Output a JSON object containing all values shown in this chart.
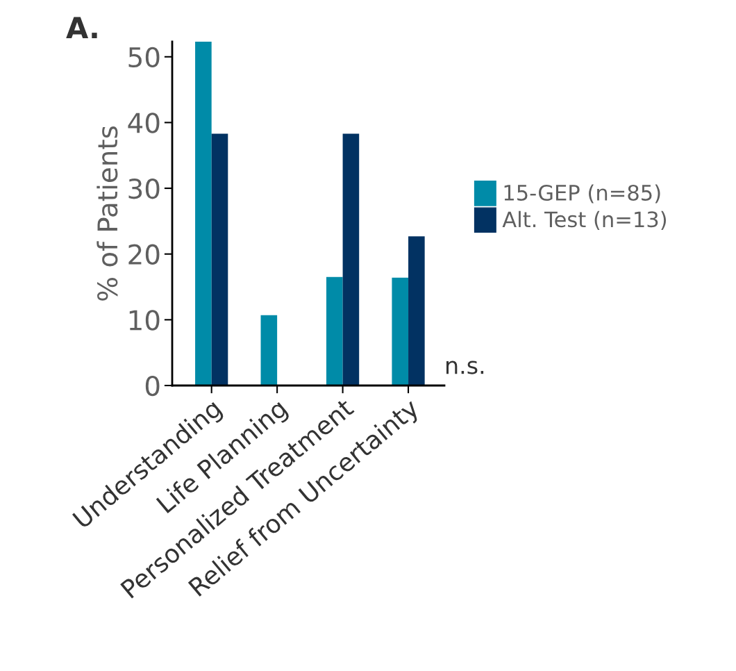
{
  "chart_data": {
    "type": "bar",
    "title": "A.",
    "ylabel": "% of Patients",
    "categories": [
      "Understanding",
      "Life Planning",
      "Personalized Treatment",
      "Relief from Uncertainty"
    ],
    "series": [
      {
        "name": "15-GEP (n=85)",
        "color": "#008ba8",
        "values": [
          52.3,
          10.7,
          16.5,
          16.4
        ]
      },
      {
        "name": "Alt. Test (n=13)",
        "color": "#023262",
        "values": [
          38.3,
          0,
          38.3,
          22.7
        ]
      }
    ],
    "ylim": [
      0,
      52.3
    ],
    "yticks": [
      0,
      10,
      20,
      30,
      40,
      50
    ],
    "grid": false,
    "legend": "right",
    "annotations": [
      "n.s."
    ]
  }
}
